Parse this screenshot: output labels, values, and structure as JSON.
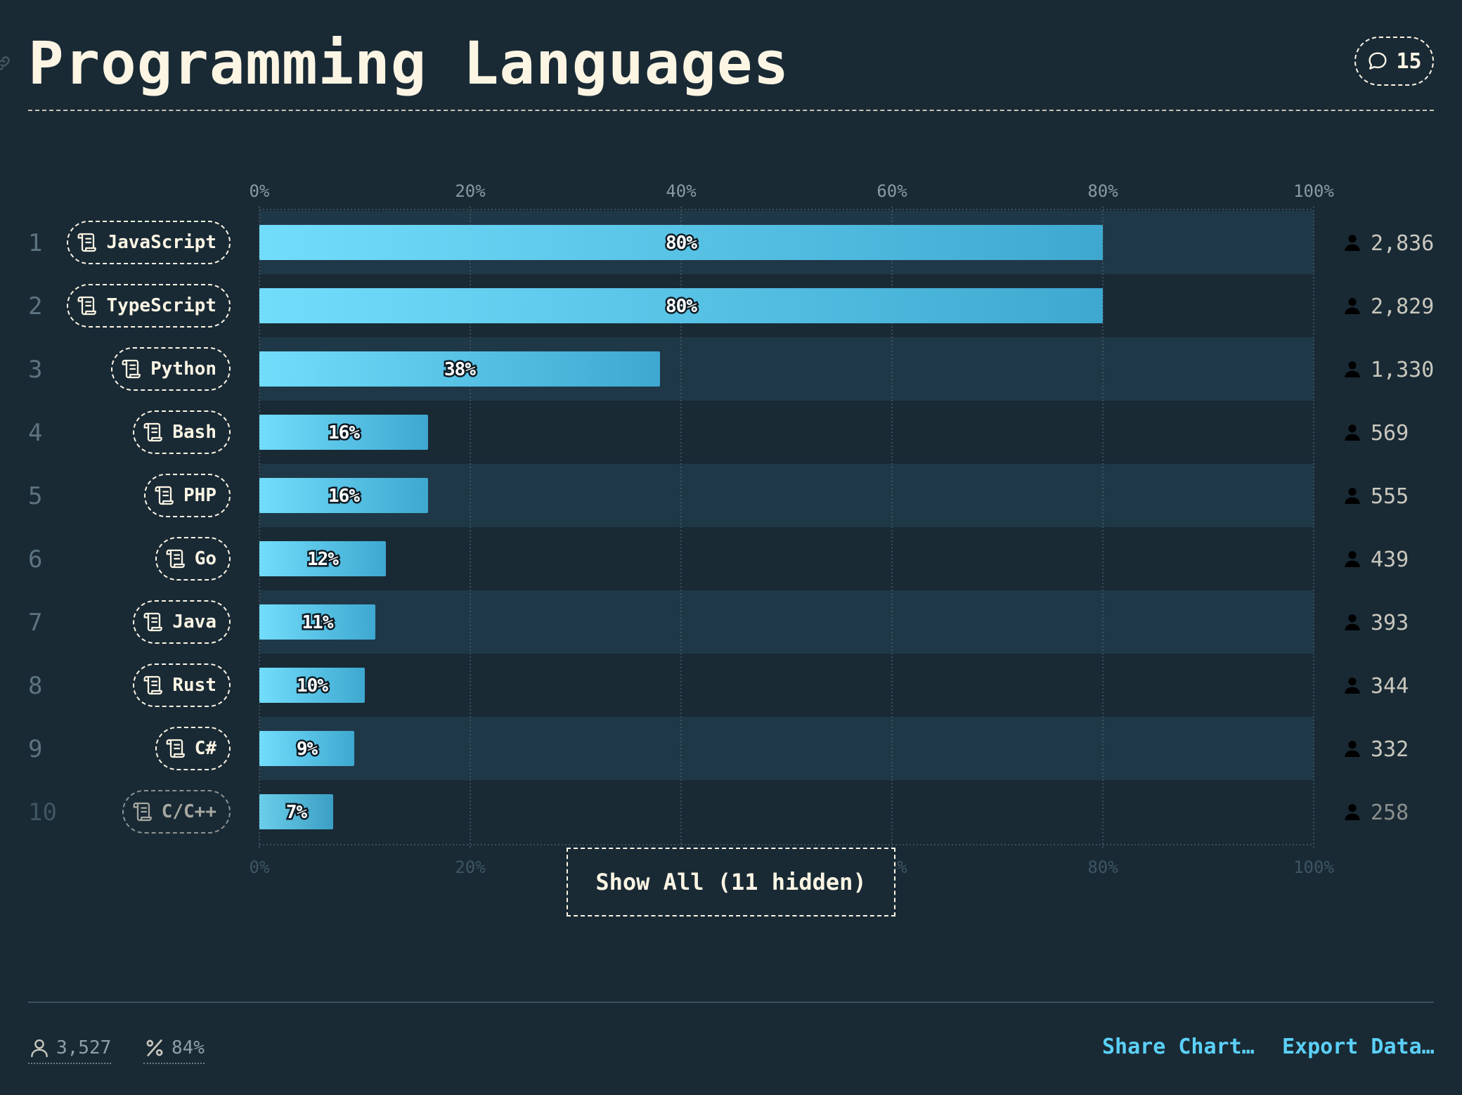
{
  "header": {
    "title": "Programming Languages",
    "comment_count": "15"
  },
  "chart_data": {
    "type": "bar",
    "orientation": "horizontal",
    "categories": [
      "JavaScript",
      "TypeScript",
      "Python",
      "Bash",
      "PHP",
      "Go",
      "Java",
      "Rust",
      "C#",
      "C/C++"
    ],
    "values": [
      80,
      80,
      38,
      16,
      16,
      12,
      11,
      10,
      9,
      7
    ],
    "value_labels": [
      "80%",
      "80%",
      "38%",
      "16%",
      "16%",
      "12%",
      "11%",
      "10%",
      "9%",
      "7%"
    ],
    "counts": [
      "2,836",
      "2,829",
      "1,330",
      "569",
      "555",
      "439",
      "393",
      "344",
      "332",
      "258"
    ],
    "ranks": [
      "1",
      "2",
      "3",
      "4",
      "5",
      "6",
      "7",
      "8",
      "9",
      "10"
    ],
    "x_ticks": [
      "0%",
      "20%",
      "40%",
      "60%",
      "80%",
      "100%"
    ],
    "xlim": [
      0,
      100
    ],
    "grid": true,
    "bar_color_start": "#72ddfb",
    "bar_color_end": "#3ea8d0"
  },
  "show_all_label": "Show All (11 hidden)",
  "footer": {
    "total_respondents": "3,527",
    "percent_stat": "84%",
    "share_label": "Share Chart…",
    "export_label": "Export Data…"
  },
  "colors": {
    "background": "#192a35",
    "row_alt": "#1f3848",
    "text": "#fdf5e4",
    "accent": "#5bd0f7"
  },
  "icons": {
    "comment": "speech-bubble-icon",
    "language": "scroll-icon",
    "user": "user-icon",
    "percent": "percent-icon",
    "link": "link-icon"
  }
}
